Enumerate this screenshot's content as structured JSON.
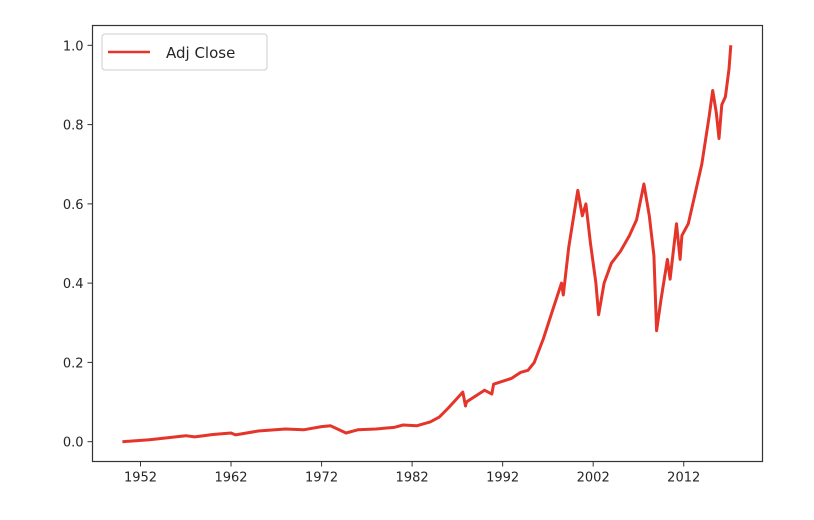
{
  "chart_data": {
    "type": "line",
    "title": "",
    "xlabel": "",
    "ylabel": "",
    "xlim": [
      1946.7,
      2020.7
    ],
    "ylim": [
      -0.05,
      1.05
    ],
    "grid": false,
    "legend_position": "upper-left",
    "x_ticks": [
      1952,
      1962,
      1972,
      1982,
      1992,
      2002,
      2012
    ],
    "x_tick_labels": [
      "1952",
      "1962",
      "1972",
      "1982",
      "1992",
      "2002",
      "2012"
    ],
    "y_ticks": [
      0.0,
      0.2,
      0.4,
      0.6,
      0.8,
      1.0
    ],
    "y_tick_labels": [
      "0.0",
      "0.2",
      "0.4",
      "0.6",
      "0.8",
      "1.0"
    ],
    "series": [
      {
        "name": "Adj Close",
        "color": "#e5342a",
        "x": [
          1950.0,
          1953,
          1955,
          1957,
          1958,
          1960,
          1962,
          1962.5,
          1965,
          1968,
          1970,
          1972,
          1973,
          1974.7,
          1976,
          1978,
          1980,
          1981,
          1982.5,
          1984,
          1985,
          1986,
          1987.6,
          1987.9,
          1988,
          1990,
          1990.8,
          1991,
          1993,
          1994,
          1994.8,
          1995.5,
          1996.5,
          1997.5,
          1998.5,
          1998.7,
          1999.3,
          2000.3,
          2000.8,
          2001.2,
          2001.7,
          2002.3,
          2002.6,
          2003.2,
          2004,
          2005,
          2006,
          2006.8,
          2007.6,
          2008.2,
          2008.7,
          2009.0,
          2009.5,
          2010.2,
          2010.5,
          2011.2,
          2011.6,
          2011.8,
          2012.5,
          2013,
          2014,
          2014.8,
          2015.2,
          2015.6,
          2015.9,
          2016.2,
          2016.6,
          2017.0,
          2017.2
        ],
        "y": [
          0.0,
          0.005,
          0.01,
          0.015,
          0.012,
          0.018,
          0.022,
          0.017,
          0.027,
          0.032,
          0.03,
          0.038,
          0.04,
          0.022,
          0.03,
          0.032,
          0.036,
          0.042,
          0.04,
          0.05,
          0.062,
          0.085,
          0.125,
          0.09,
          0.1,
          0.13,
          0.12,
          0.145,
          0.16,
          0.175,
          0.18,
          0.2,
          0.26,
          0.33,
          0.4,
          0.37,
          0.49,
          0.634,
          0.57,
          0.6,
          0.5,
          0.4,
          0.32,
          0.4,
          0.45,
          0.48,
          0.52,
          0.56,
          0.65,
          0.57,
          0.47,
          0.28,
          0.36,
          0.46,
          0.41,
          0.55,
          0.46,
          0.52,
          0.55,
          0.6,
          0.7,
          0.82,
          0.886,
          0.83,
          0.765,
          0.85,
          0.87,
          0.94,
          1.0
        ]
      }
    ]
  }
}
